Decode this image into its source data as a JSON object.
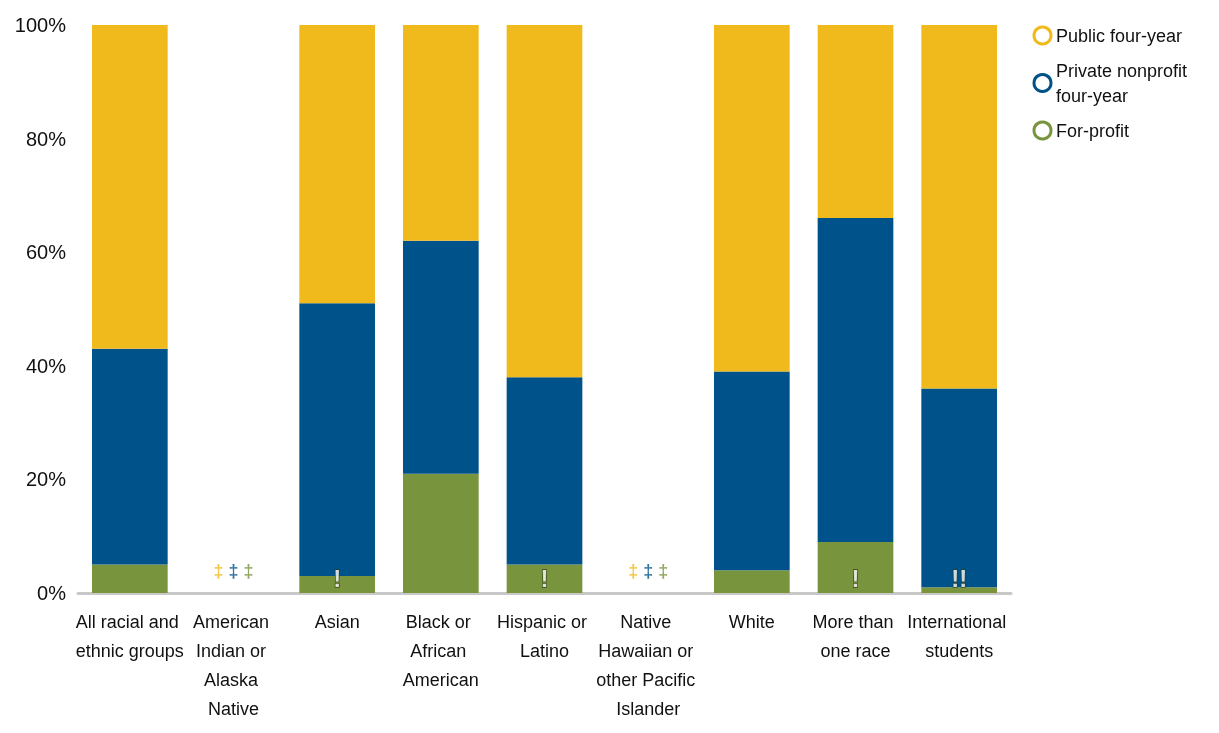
{
  "chart_data": {
    "type": "bar",
    "stacked": true,
    "categories": [
      "All racial and ethnic groups",
      "American Indian or Alaska Native",
      "Asian",
      "Black or African American",
      "Hispanic or Latino",
      "Native Hawaiian or other Pacific Islander",
      "White",
      "More than one race",
      "International students"
    ],
    "series": [
      {
        "name": "For-profit",
        "color": "#78943c",
        "values": [
          5,
          null,
          3,
          21,
          5,
          null,
          4,
          9,
          1
        ],
        "value_labels": [
          null,
          "‡",
          "!",
          null,
          "!",
          "‡",
          null,
          "!",
          "!!"
        ]
      },
      {
        "name": "Private nonprofit four-year",
        "color": "#00528a",
        "values": [
          38,
          null,
          48,
          41,
          33,
          null,
          35,
          57,
          35
        ],
        "value_labels": [
          null,
          "‡",
          null,
          null,
          null,
          "‡",
          null,
          null,
          null
        ]
      },
      {
        "name": "Public four-year",
        "color": "#f0b91c",
        "values": [
          57,
          null,
          49,
          38,
          62,
          null,
          61,
          34,
          64
        ],
        "value_labels": [
          null,
          "‡",
          null,
          null,
          null,
          "‡",
          null,
          null,
          null
        ]
      }
    ],
    "ylim": [
      0,
      100
    ],
    "yticks": [
      {
        "value": 0,
        "label": "0%"
      },
      {
        "value": 20,
        "label": "20%"
      },
      {
        "value": 40,
        "label": "40%"
      },
      {
        "value": 60,
        "label": "60%"
      },
      {
        "value": 80,
        "label": "80%"
      },
      {
        "value": 100,
        "label": "100%"
      }
    ],
    "grid": false,
    "legend": "top right"
  }
}
